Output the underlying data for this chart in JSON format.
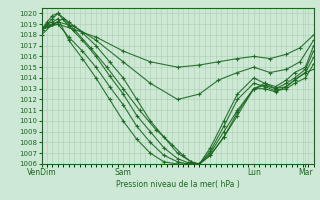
{
  "xlabel": "Pression niveau de la mer( hPa )",
  "ylim": [
    1006,
    1020.5
  ],
  "yticks": [
    1006,
    1007,
    1008,
    1009,
    1010,
    1011,
    1012,
    1013,
    1014,
    1015,
    1016,
    1017,
    1018,
    1019,
    1020
  ],
  "xtick_labels": [
    "VenDim",
    "Sam",
    "Lun",
    "Mar"
  ],
  "xtick_positions": [
    0,
    0.3,
    0.78,
    0.97
  ],
  "xlim": [
    0,
    1.0
  ],
  "bg_color": "#cde8d4",
  "grid_color": "#aacfb2",
  "line_color": "#1a6620",
  "lines": [
    {
      "points": [
        [
          0,
          1018.5
        ],
        [
          0.02,
          1019.0
        ],
        [
          0.04,
          1019.5
        ],
        [
          0.06,
          1020.0
        ],
        [
          0.1,
          1019.2
        ],
        [
          0.15,
          1018.2
        ],
        [
          0.2,
          1017.0
        ],
        [
          0.25,
          1015.5
        ],
        [
          0.3,
          1014.0
        ],
        [
          0.35,
          1012.0
        ],
        [
          0.4,
          1010.0
        ],
        [
          0.45,
          1008.5
        ],
        [
          0.5,
          1007.0
        ],
        [
          0.55,
          1006.2
        ],
        [
          0.58,
          1006.0
        ],
        [
          0.62,
          1006.8
        ],
        [
          0.67,
          1008.5
        ],
        [
          0.72,
          1010.5
        ],
        [
          0.78,
          1013.0
        ],
        [
          0.82,
          1013.5
        ],
        [
          0.86,
          1013.2
        ],
        [
          0.9,
          1013.8
        ],
        [
          0.93,
          1014.5
        ],
        [
          0.97,
          1015.0
        ],
        [
          1.0,
          1017.0
        ]
      ]
    },
    {
      "points": [
        [
          0,
          1018.5
        ],
        [
          0.02,
          1019.2
        ],
        [
          0.04,
          1019.8
        ],
        [
          0.06,
          1020.0
        ],
        [
          0.1,
          1018.8
        ],
        [
          0.15,
          1017.5
        ],
        [
          0.2,
          1016.0
        ],
        [
          0.25,
          1014.2
        ],
        [
          0.3,
          1012.5
        ],
        [
          0.35,
          1010.5
        ],
        [
          0.4,
          1009.0
        ],
        [
          0.45,
          1007.5
        ],
        [
          0.5,
          1006.5
        ],
        [
          0.54,
          1006.1
        ],
        [
          0.58,
          1006.0
        ],
        [
          0.62,
          1007.0
        ],
        [
          0.67,
          1009.0
        ],
        [
          0.72,
          1011.0
        ],
        [
          0.78,
          1013.0
        ],
        [
          0.82,
          1013.3
        ],
        [
          0.86,
          1013.0
        ],
        [
          0.9,
          1013.5
        ],
        [
          0.93,
          1014.0
        ],
        [
          0.97,
          1014.8
        ],
        [
          1.0,
          1016.5
        ]
      ]
    },
    {
      "points": [
        [
          0,
          1018.5
        ],
        [
          0.02,
          1018.8
        ],
        [
          0.04,
          1019.0
        ],
        [
          0.06,
          1019.0
        ],
        [
          0.1,
          1017.8
        ],
        [
          0.15,
          1016.5
        ],
        [
          0.2,
          1015.0
        ],
        [
          0.25,
          1013.2
        ],
        [
          0.3,
          1011.5
        ],
        [
          0.35,
          1009.5
        ],
        [
          0.4,
          1008.0
        ],
        [
          0.45,
          1006.8
        ],
        [
          0.5,
          1006.2
        ],
        [
          0.54,
          1006.0
        ],
        [
          0.58,
          1006.0
        ],
        [
          0.62,
          1006.8
        ],
        [
          0.67,
          1008.5
        ],
        [
          0.72,
          1010.8
        ],
        [
          0.78,
          1013.0
        ],
        [
          0.82,
          1013.0
        ],
        [
          0.86,
          1012.7
        ],
        [
          0.9,
          1013.2
        ],
        [
          0.93,
          1013.8
        ],
        [
          0.97,
          1014.5
        ],
        [
          1.0,
          1015.9
        ]
      ]
    },
    {
      "points": [
        [
          0,
          1018.5
        ],
        [
          0.02,
          1019.0
        ],
        [
          0.04,
          1019.2
        ],
        [
          0.06,
          1019.5
        ],
        [
          0.1,
          1017.5
        ],
        [
          0.15,
          1015.8
        ],
        [
          0.2,
          1014.0
        ],
        [
          0.25,
          1012.0
        ],
        [
          0.3,
          1010.0
        ],
        [
          0.35,
          1008.3
        ],
        [
          0.4,
          1007.0
        ],
        [
          0.45,
          1006.2
        ],
        [
          0.5,
          1006.0
        ],
        [
          0.54,
          1006.0
        ],
        [
          0.58,
          1006.0
        ],
        [
          0.62,
          1007.2
        ],
        [
          0.67,
          1009.5
        ],
        [
          0.72,
          1012.0
        ],
        [
          0.78,
          1013.5
        ],
        [
          0.82,
          1013.2
        ],
        [
          0.86,
          1012.8
        ],
        [
          0.9,
          1013.0
        ],
        [
          0.93,
          1013.5
        ],
        [
          0.97,
          1014.0
        ],
        [
          1.0,
          1015.3
        ]
      ]
    },
    {
      "points": [
        [
          0,
          1018.0
        ],
        [
          0.04,
          1019.0
        ],
        [
          0.08,
          1019.5
        ],
        [
          0.12,
          1018.5
        ],
        [
          0.18,
          1016.8
        ],
        [
          0.24,
          1015.0
        ],
        [
          0.3,
          1013.0
        ],
        [
          0.36,
          1011.0
        ],
        [
          0.42,
          1009.2
        ],
        [
          0.48,
          1007.8
        ],
        [
          0.52,
          1006.8
        ],
        [
          0.55,
          1006.2
        ],
        [
          0.58,
          1006.0
        ],
        [
          0.62,
          1007.5
        ],
        [
          0.67,
          1010.0
        ],
        [
          0.72,
          1012.5
        ],
        [
          0.78,
          1014.0
        ],
        [
          0.82,
          1013.5
        ],
        [
          0.86,
          1013.0
        ],
        [
          0.9,
          1013.2
        ],
        [
          0.93,
          1013.8
        ],
        [
          0.97,
          1014.5
        ],
        [
          1.0,
          1014.8
        ]
      ]
    },
    {
      "points": [
        [
          0,
          1018.5
        ],
        [
          0.06,
          1019.2
        ],
        [
          0.12,
          1018.8
        ],
        [
          0.2,
          1017.5
        ],
        [
          0.3,
          1015.5
        ],
        [
          0.4,
          1013.5
        ],
        [
          0.5,
          1012.0
        ],
        [
          0.58,
          1012.5
        ],
        [
          0.65,
          1013.8
        ],
        [
          0.72,
          1014.5
        ],
        [
          0.78,
          1015.0
        ],
        [
          0.84,
          1014.5
        ],
        [
          0.9,
          1014.8
        ],
        [
          0.95,
          1015.5
        ],
        [
          1.0,
          1017.5
        ]
      ]
    },
    {
      "points": [
        [
          0,
          1018.5
        ],
        [
          0.06,
          1019.0
        ],
        [
          0.12,
          1018.5
        ],
        [
          0.2,
          1017.8
        ],
        [
          0.3,
          1016.5
        ],
        [
          0.4,
          1015.5
        ],
        [
          0.5,
          1015.0
        ],
        [
          0.58,
          1015.2
        ],
        [
          0.65,
          1015.5
        ],
        [
          0.72,
          1015.8
        ],
        [
          0.78,
          1016.0
        ],
        [
          0.84,
          1015.8
        ],
        [
          0.9,
          1016.2
        ],
        [
          0.95,
          1016.8
        ],
        [
          1.0,
          1018.0
        ]
      ]
    }
  ]
}
